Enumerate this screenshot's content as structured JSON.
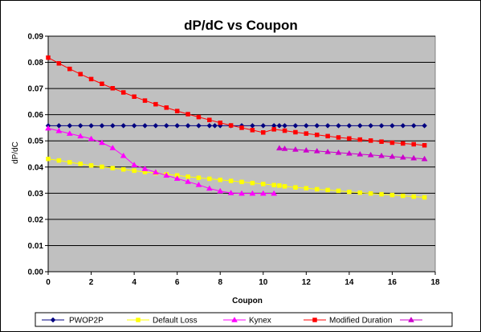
{
  "chart_data": {
    "type": "line",
    "title": "dP/dC vs Coupon",
    "xlabel": "Coupon",
    "ylabel": "dP/dC",
    "xlim": [
      0,
      18
    ],
    "ylim": [
      0,
      0.09
    ],
    "xticks": [
      "0",
      "2",
      "4",
      "6",
      "8",
      "10",
      "12",
      "14",
      "16",
      "18"
    ],
    "yticks": [
      "0.00",
      "0.01",
      "0.02",
      "0.03",
      "0.04",
      "0.05",
      "0.06",
      "0.07",
      "0.08",
      "0.09"
    ],
    "grid": true,
    "legend": "bottom",
    "series": [
      {
        "name": "PWOP2P",
        "color": "#000080",
        "marker": "diamond",
        "x": [
          0,
          0.5,
          1,
          1.5,
          2,
          2.5,
          3,
          3.5,
          4,
          4.5,
          5,
          5.5,
          6,
          6.5,
          7,
          7.5,
          7.75,
          8,
          8.5,
          9,
          9.5,
          10,
          10.5,
          10.75,
          11,
          11.5,
          12,
          12.5,
          13,
          13.5,
          14,
          14.5,
          15,
          15.5,
          16,
          16.5,
          17,
          17.5
        ],
        "y": [
          0.0558,
          0.0558,
          0.0558,
          0.0558,
          0.0558,
          0.0558,
          0.0558,
          0.0558,
          0.0558,
          0.0558,
          0.0558,
          0.0558,
          0.0558,
          0.0558,
          0.0558,
          0.0558,
          0.0558,
          0.0558,
          0.0558,
          0.0558,
          0.0558,
          0.0558,
          0.0558,
          0.0558,
          0.0558,
          0.0558,
          0.0558,
          0.0558,
          0.0558,
          0.0558,
          0.0558,
          0.0558,
          0.0558,
          0.0558,
          0.0558,
          0.0558,
          0.0558,
          0.0558
        ]
      },
      {
        "name": "Default Loss",
        "color": "#ffff00",
        "marker": "square",
        "x": [
          0,
          0.5,
          1,
          1.5,
          2,
          2.5,
          3,
          3.5,
          4,
          4.5,
          5,
          5.5,
          6,
          6.5,
          7,
          7.5,
          8,
          8.5,
          9,
          9.5,
          10,
          10.5,
          10.75,
          11,
          11.5,
          12,
          12.5,
          13,
          13.5,
          14,
          14.5,
          15,
          15.5,
          16,
          16.5,
          17,
          17.5
        ],
        "y": [
          0.0431,
          0.0425,
          0.0418,
          0.0412,
          0.0406,
          0.0401,
          0.0396,
          0.0391,
          0.0386,
          0.0381,
          0.0377,
          0.0372,
          0.0368,
          0.0363,
          0.0359,
          0.0355,
          0.0351,
          0.0347,
          0.0343,
          0.0339,
          0.0335,
          0.0331,
          0.0329,
          0.0326,
          0.0322,
          0.0319,
          0.0315,
          0.0312,
          0.0309,
          0.0305,
          0.0302,
          0.0299,
          0.0296,
          0.0293,
          0.029,
          0.0287,
          0.0284
        ]
      },
      {
        "name": "Kynex",
        "color": "#ff00ff",
        "marker": "triangle",
        "x": [
          0,
          0.5,
          1,
          1.5,
          2,
          2.5,
          3,
          3.5,
          4,
          4.5,
          5,
          5.5,
          6,
          6.5,
          7,
          7.5,
          8,
          8.5,
          9,
          9.5,
          10,
          10.5
        ],
        "y": [
          0.0548,
          0.0538,
          0.0528,
          0.0518,
          0.0508,
          0.0493,
          0.0473,
          0.0443,
          0.0408,
          0.0393,
          0.038,
          0.0368,
          0.0356,
          0.0344,
          0.0332,
          0.0318,
          0.0308,
          0.0301,
          0.0299,
          0.0299,
          0.0299,
          0.0299
        ]
      },
      {
        "name": "Modified Duration",
        "color": "#ff0000",
        "marker": "square",
        "x": [
          0,
          0.5,
          1,
          1.5,
          2,
          2.5,
          3,
          3.5,
          4,
          4.5,
          5,
          5.5,
          6,
          6.5,
          7,
          7.5,
          8,
          8.5,
          9,
          9.5,
          10,
          10.5,
          11,
          11.5,
          12,
          12.5,
          13,
          13.5,
          14,
          14.5,
          15,
          15.5,
          16,
          16.5,
          17,
          17.5
        ],
        "y": [
          0.0818,
          0.0796,
          0.0775,
          0.0755,
          0.0736,
          0.0718,
          0.0701,
          0.0685,
          0.0669,
          0.0654,
          0.064,
          0.0627,
          0.0614,
          0.0602,
          0.0591,
          0.058,
          0.0569,
          0.0559,
          0.055,
          0.0541,
          0.0532,
          0.0544,
          0.0539,
          0.0533,
          0.0528,
          0.0523,
          0.0518,
          0.0513,
          0.0509,
          0.0505,
          0.0501,
          0.0497,
          0.0493,
          0.049,
          0.0487,
          0.0483
        ]
      },
      {
        "name": "",
        "color": "#cc00cc",
        "marker": "triangle",
        "x": [
          10.75,
          11,
          11.5,
          12,
          12.5,
          13,
          13.5,
          14,
          14.5,
          15,
          15.5,
          16,
          16.5,
          17,
          17.5
        ],
        "y": [
          0.0472,
          0.047,
          0.0467,
          0.0464,
          0.0461,
          0.0458,
          0.0455,
          0.0452,
          0.0449,
          0.0446,
          0.0443,
          0.044,
          0.0437,
          0.0434,
          0.0431
        ]
      }
    ]
  }
}
